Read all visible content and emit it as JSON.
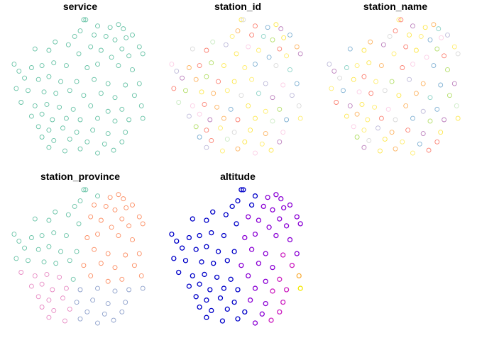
{
  "points": {
    "x": [
      105,
      108,
      125,
      143,
      155,
      162,
      100,
      92,
      120,
      137,
      150,
      166,
      175,
      64,
      83,
      115,
      130,
      160,
      185,
      35,
      55,
      98,
      145,
      170,
      190,
      5,
      12,
      30,
      45,
      62,
      80,
      110,
      125,
      155,
      175,
      20,
      40,
      55,
      72,
      95,
      120,
      140,
      165,
      185,
      8,
      25,
      48,
      65,
      85,
      105,
      130,
      150,
      178,
      15,
      35,
      52,
      70,
      90,
      115,
      140,
      160,
      188,
      30,
      45,
      60,
      80,
      100,
      125,
      150,
      170,
      190,
      40,
      55,
      75,
      95,
      118,
      140,
      165,
      45,
      62,
      85,
      110,
      135,
      160,
      55,
      78,
      100,
      125,
      148
    ],
    "y": [
      6,
      6,
      15,
      17,
      13,
      19,
      22,
      30,
      28,
      30,
      35,
      32,
      28,
      38,
      42,
      45,
      50,
      48,
      45,
      48,
      50,
      55,
      60,
      58,
      55,
      70,
      80,
      75,
      72,
      68,
      72,
      75,
      70,
      72,
      78,
      90,
      92,
      88,
      95,
      95,
      92,
      98,
      100,
      98,
      105,
      108,
      110,
      112,
      108,
      115,
      112,
      118,
      115,
      125,
      130,
      128,
      132,
      135,
      130,
      138,
      135,
      130,
      145,
      142,
      150,
      148,
      150,
      148,
      152,
      150,
      148,
      160,
      165,
      162,
      168,
      165,
      170,
      168,
      175,
      180,
      178,
      182,
      185,
      182,
      190,
      195,
      192,
      198,
      194
    ],
    "xlim": [
      0,
      200
    ],
    "ylim": [
      200,
      0
    ]
  },
  "panels": [
    {
      "title": "service",
      "color": "#66c2a5"
    },
    {
      "title": "station_id",
      "palette": [
        "#8dd3c7",
        "#fde74c",
        "#bebada",
        "#fb8072",
        "#80b1d3",
        "#fdb462",
        "#b3de69",
        "#fccde5",
        "#d9d9d9",
        "#bc80bd",
        "#ccebc5",
        "#ffed6f"
      ],
      "groups": [
        1,
        8,
        3,
        4,
        1,
        9,
        5,
        11,
        3,
        0,
        6,
        1,
        4,
        10,
        2,
        7,
        11,
        3,
        5,
        8,
        3,
        1,
        4,
        11,
        9,
        7,
        2,
        5,
        3,
        6,
        1,
        11,
        4,
        8,
        0,
        9,
        5,
        6,
        3,
        1,
        11,
        2,
        7,
        4,
        3,
        6,
        1,
        5,
        11,
        8,
        0,
        9,
        2,
        10,
        7,
        3,
        5,
        4,
        1,
        11,
        6,
        8,
        2,
        7,
        9,
        5,
        3,
        1,
        10,
        4,
        11,
        6,
        3,
        11,
        8,
        1,
        5,
        7,
        4,
        3,
        10,
        1,
        11,
        9,
        2,
        11,
        5,
        7,
        1
      ]
    },
    {
      "title": "station_name",
      "palette": [
        "#8dd3c7",
        "#fde74c",
        "#bebada",
        "#fb8072",
        "#80b1d3",
        "#fdb462",
        "#b3de69",
        "#fccde5",
        "#d9d9d9",
        "#bc80bd",
        "#ccebc5",
        "#ffed6f"
      ],
      "groups": [
        11,
        3,
        9,
        1,
        5,
        0,
        3,
        8,
        1,
        11,
        4,
        7,
        2,
        5,
        9,
        3,
        1,
        6,
        11,
        4,
        1,
        11,
        7,
        3,
        8,
        2,
        9,
        0,
        11,
        1,
        5,
        3,
        7,
        4,
        6,
        8,
        1,
        3,
        11,
        6,
        2,
        5,
        4,
        9,
        11,
        4,
        7,
        3,
        8,
        1,
        5,
        0,
        6,
        3,
        9,
        1,
        11,
        7,
        5,
        2,
        4,
        10,
        1,
        5,
        11,
        3,
        8,
        4,
        6,
        9,
        1,
        7,
        11,
        2,
        5,
        3,
        9,
        1,
        6,
        8,
        1,
        11,
        4,
        3,
        9,
        1,
        5,
        11,
        3
      ]
    },
    {
      "title": "station_province",
      "palette": [
        "#66c2a5",
        "#fc8d62",
        "#8da0cb",
        "#e78ac3"
      ],
      "groups": [
        0,
        0,
        0,
        1,
        1,
        1,
        0,
        0,
        1,
        1,
        1,
        1,
        1,
        0,
        0,
        1,
        1,
        1,
        1,
        0,
        0,
        0,
        1,
        1,
        1,
        0,
        0,
        0,
        0,
        0,
        0,
        1,
        1,
        1,
        1,
        0,
        0,
        0,
        0,
        0,
        1,
        1,
        1,
        1,
        0,
        0,
        0,
        0,
        0,
        1,
        1,
        1,
        1,
        3,
        3,
        3,
        3,
        0,
        1,
        1,
        1,
        1,
        3,
        3,
        3,
        3,
        2,
        2,
        2,
        2,
        2,
        3,
        3,
        3,
        2,
        2,
        2,
        2,
        3,
        3,
        3,
        2,
        2,
        2,
        3,
        3,
        2,
        2,
        2
      ]
    },
    {
      "title": "altitude",
      "palette": [
        "#0000c8",
        "#8a00d4",
        "#cc20c0",
        "#f0708a",
        "#f8b040",
        "#f4e800"
      ],
      "groups": [
        0,
        0,
        0,
        1,
        1,
        1,
        0,
        0,
        0,
        1,
        1,
        1,
        1,
        0,
        0,
        1,
        1,
        1,
        1,
        0,
        0,
        0,
        1,
        1,
        1,
        0,
        0,
        0,
        0,
        0,
        0,
        1,
        1,
        1,
        1,
        0,
        0,
        0,
        0,
        0,
        1,
        1,
        2,
        1,
        0,
        0,
        0,
        0,
        0,
        1,
        1,
        1,
        2,
        0,
        0,
        0,
        0,
        0,
        1,
        1,
        2,
        4,
        0,
        0,
        0,
        0,
        0,
        1,
        2,
        2,
        5,
        0,
        0,
        0,
        0,
        1,
        1,
        2,
        0,
        0,
        0,
        0,
        1,
        2,
        0,
        0,
        0,
        1,
        2
      ]
    }
  ]
}
